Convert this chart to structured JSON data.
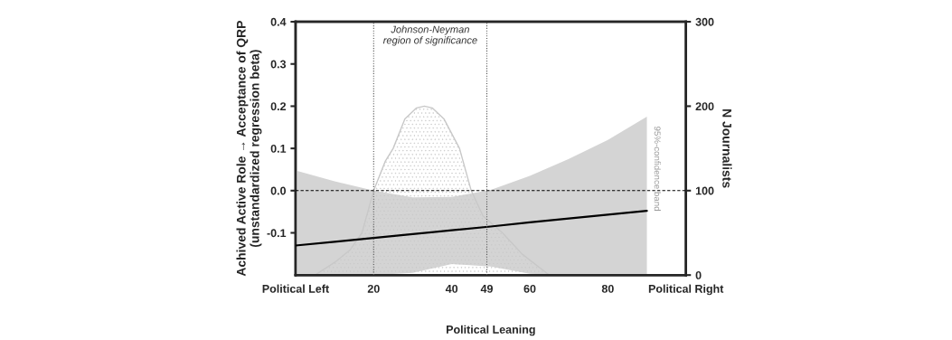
{
  "chart_data": {
    "type": "line",
    "xlabel": "Political Leaning",
    "ylabel": "Achived Active Role → Acceptance of QRP\n(unstandardized regression beta)",
    "y2label": "N Journalists",
    "xlim": [
      0,
      100
    ],
    "xticks": [
      {
        "value": 0,
        "label": "Political Left"
      },
      20,
      40,
      49,
      60,
      80,
      {
        "value": 100,
        "label": "Political Right"
      }
    ],
    "ylim": [
      -0.2,
      0.4
    ],
    "yticks": [
      {
        "value": -0.1,
        "label": "-0.1"
      },
      {
        "value": 0,
        "label": "0.0"
      },
      0.1,
      0.2,
      0.3,
      0.4
    ],
    "y2lim": [
      0,
      300
    ],
    "y2ticks": [
      0,
      100,
      200,
      300
    ],
    "series": [
      {
        "type": "area",
        "axis": "y2",
        "color": "#c8c8c8",
        "x": [
          5,
          10,
          14,
          17,
          20,
          23,
          25,
          28,
          31,
          33,
          35,
          38,
          42,
          45,
          48,
          53,
          58,
          65
        ],
        "values": [
          0,
          15,
          30,
          50,
          100,
          135,
          150,
          185,
          198,
          200,
          198,
          185,
          150,
          100,
          70,
          50,
          25,
          0
        ]
      },
      {
        "color": "#000000",
        "x": [
          0,
          10,
          20,
          30,
          40,
          50,
          60,
          70,
          80,
          90
        ],
        "values": [
          -0.13,
          -0.121,
          -0.112,
          -0.103,
          -0.094,
          -0.085,
          -0.075,
          -0.066,
          -0.057,
          -0.048
        ],
        "lower": [
          -0.2,
          -0.2,
          -0.2,
          -0.195,
          -0.174,
          -0.18,
          -0.197,
          -0.2,
          -0.2,
          -0.2
        ],
        "upper": [
          0.048,
          0.022,
          0.0,
          -0.016,
          -0.015,
          0.002,
          0.035,
          0.075,
          0.12,
          0.175
        ]
      }
    ],
    "ref_lines": [
      {
        "axis": "y",
        "value": 0,
        "line_style": "dashed",
        "color": "#000000"
      },
      {
        "axis": "x",
        "value": 20,
        "line_style": "dotted",
        "color": "#555555"
      },
      {
        "axis": "x",
        "value": 49,
        "line_style": "dotted",
        "color": "#555555"
      }
    ],
    "annotations": [
      "Johnson-Neyman\nregion of significance",
      "95%-confidence band"
    ],
    "grid": false,
    "legend": false
  }
}
